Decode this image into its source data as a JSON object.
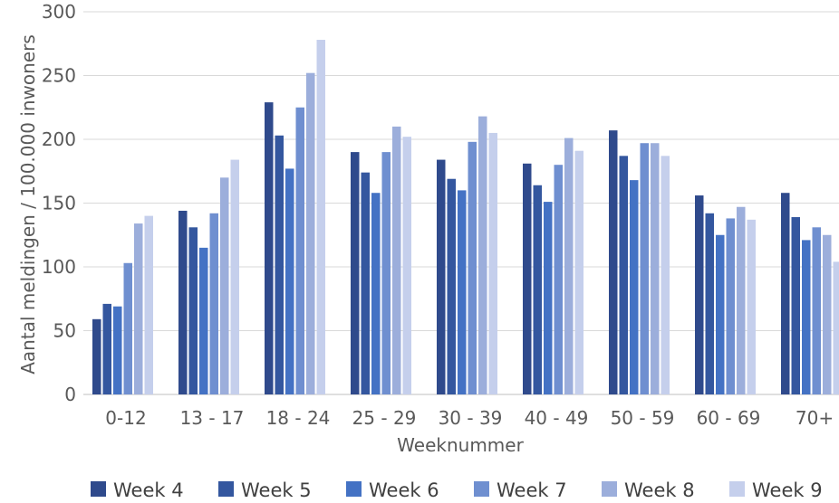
{
  "chart_data": {
    "type": "bar",
    "title": "",
    "xlabel": "Weeknummer",
    "ylabel": "Aantal meldingen / 100.000 inwoners",
    "ylim": [
      0,
      300
    ],
    "yticks": [
      "0",
      "50",
      "100",
      "150",
      "200",
      "250",
      "300"
    ],
    "grid": true,
    "legend_position": "bottom",
    "categories": [
      "0-12",
      "13 - 17",
      "18 - 24",
      "25 - 29",
      "30 - 39",
      "40 - 49",
      "50 - 59",
      "60 - 69",
      "70+"
    ],
    "series": [
      {
        "name": "Week 4",
        "color": "#2f4a8c",
        "values": [
          59,
          144,
          229,
          190,
          184,
          181,
          207,
          156,
          158
        ]
      },
      {
        "name": "Week 5",
        "color": "#34579f",
        "values": [
          71,
          131,
          203,
          174,
          169,
          164,
          187,
          142,
          139
        ]
      },
      {
        "name": "Week 6",
        "color": "#4472c4",
        "values": [
          69,
          115,
          177,
          158,
          160,
          151,
          168,
          125,
          121
        ]
      },
      {
        "name": "Week 7",
        "color": "#6f8fd0",
        "values": [
          103,
          142,
          225,
          190,
          198,
          180,
          197,
          138,
          131
        ]
      },
      {
        "name": "Week 8",
        "color": "#9caedb",
        "values": [
          134,
          170,
          252,
          210,
          218,
          201,
          197,
          147,
          125
        ]
      },
      {
        "name": "Week 9",
        "color": "#c5cfec",
        "values": [
          140,
          184,
          278,
          202,
          205,
          191,
          187,
          137,
          104
        ]
      }
    ]
  }
}
